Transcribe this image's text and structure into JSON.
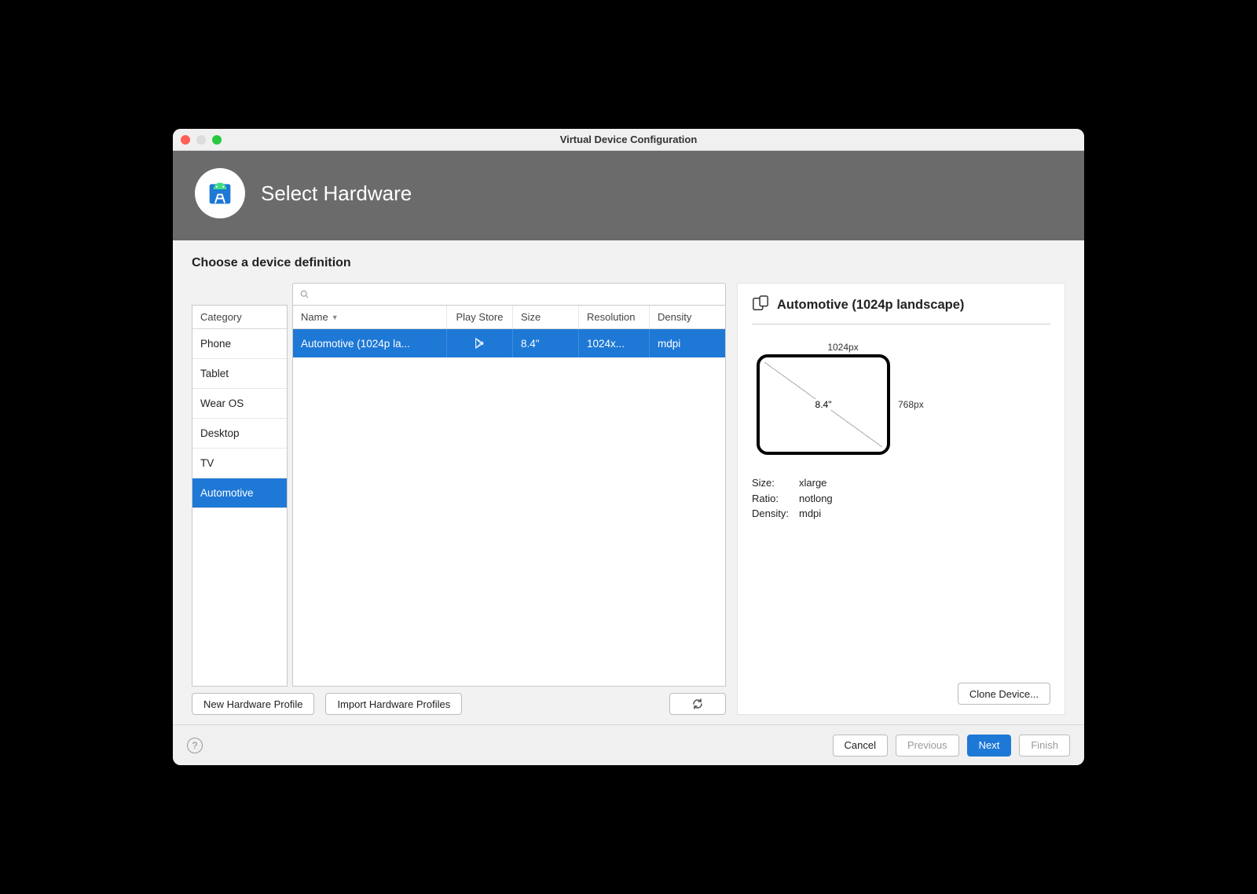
{
  "window": {
    "title": "Virtual Device Configuration"
  },
  "banner": {
    "title": "Select Hardware"
  },
  "section": {
    "title": "Choose a device definition"
  },
  "search": {
    "value": "",
    "placeholder": ""
  },
  "category": {
    "header": "Category",
    "items": [
      "Phone",
      "Tablet",
      "Wear OS",
      "Desktop",
      "TV",
      "Automotive"
    ],
    "selected_index": 5
  },
  "devices": {
    "columns": {
      "name": "Name",
      "play": "Play Store",
      "size": "Size",
      "res": "Resolution",
      "den": "Density"
    },
    "rows": [
      {
        "name": "Automotive (1024p la...",
        "play": true,
        "size": "8.4\"",
        "res": "1024x...",
        "den": "mdpi"
      }
    ],
    "selected_index": 0
  },
  "buttons": {
    "new_profile": "New Hardware Profile",
    "import_profiles": "Import Hardware Profiles",
    "clone": "Clone Device...",
    "cancel": "Cancel",
    "previous": "Previous",
    "next": "Next",
    "finish": "Finish"
  },
  "preview": {
    "title": "Automotive (1024p landscape)",
    "width_label": "1024px",
    "height_label": "768px",
    "diagonal": "8.4\"",
    "specs": {
      "size_k": "Size:",
      "size_v": "xlarge",
      "ratio_k": "Ratio:",
      "ratio_v": "notlong",
      "density_k": "Density:",
      "density_v": "mdpi"
    }
  },
  "colors": {
    "accent": "#1e78d6",
    "banner_bg": "#6b6b6b",
    "window_bg": "#f0f0f0",
    "border": "#c8c8c8"
  }
}
